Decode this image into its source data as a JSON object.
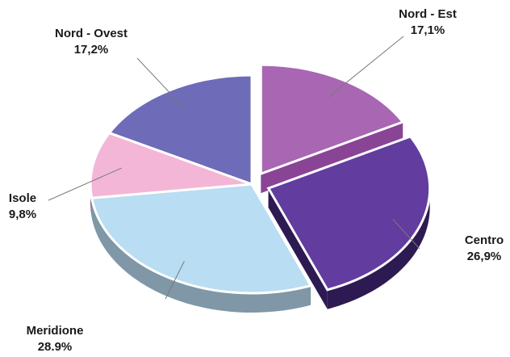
{
  "chart_data": {
    "type": "pie",
    "title": "",
    "slices": [
      {
        "name": "Nord - Est",
        "value": 17.1,
        "label_value": "17,1%",
        "color": "#A866B3",
        "side": "#8A4496",
        "exploded": true
      },
      {
        "name": "Centro",
        "value": 26.9,
        "label_value": "26,9%",
        "color": "#623C9E",
        "side": "#2E1A52",
        "exploded": true
      },
      {
        "name": "Meridione",
        "value": 28.9,
        "label_value": "28.9%",
        "color": "#B9DDF2",
        "side": "#7F97A6",
        "exploded": false
      },
      {
        "name": "Isole",
        "value": 9.8,
        "label_value": "9,8%",
        "color": "#F4B6D6",
        "side": "#8E6A7E",
        "exploded": false
      },
      {
        "name": "Nord - Ovest",
        "value": 17.2,
        "label_value": "17,2%",
        "color": "#6E6BB8",
        "side": "#2F2C66",
        "exploded": false
      }
    ],
    "style": "3d-exploded",
    "legend": "none"
  }
}
